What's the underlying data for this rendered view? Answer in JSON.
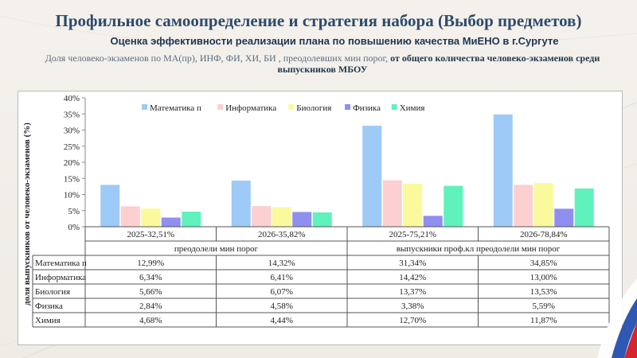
{
  "slide": {
    "title": "Профильное самоопределение и стратегия набора (Выбор предметов)",
    "subtitle": "Оценка эффективности реализации плана по повышению качества МиЕНО в г.Сургуте",
    "desc_normal": "Доля человеко-экзаменов по МА(пр), ИНФ, ФИ, ХИ, БИ , преодолевших мин порог,",
    "desc_bold": "от общего количества человеко-экзаменов среди выпускников МБОУ"
  },
  "chart_data": {
    "type": "bar",
    "ylabel": "доля выпускников от человеко-экзаменов (%)",
    "ylim": [
      0,
      40
    ],
    "yticks": [
      "0%",
      "5%",
      "10%",
      "15%",
      "20%",
      "25%",
      "30%",
      "35%",
      "40%"
    ],
    "grid": false,
    "legend_position": "top",
    "categories": [
      "2025-32,51%",
      "2026-35,82%",
      "2025-75,21%",
      "2026-78,84%"
    ],
    "groups": [
      {
        "label": "преодолели мин порог",
        "span": 2
      },
      {
        "label": "выпускники проф.кл преодолели мин порог",
        "span": 2
      }
    ],
    "series": [
      {
        "name": "Математика п",
        "color": "#9dcaf7",
        "values": [
          12.99,
          14.32,
          31.34,
          34.85
        ],
        "labels": [
          "12,99%",
          "14,32%",
          "31,34%",
          "34,85%"
        ]
      },
      {
        "name": "Информатика",
        "color": "#fcd0d0",
        "values": [
          6.34,
          6.41,
          14.42,
          13.0
        ],
        "labels": [
          "6,34%",
          "6,41%",
          "14,42%",
          "13,00%"
        ]
      },
      {
        "name": "Биология",
        "color": "#fafa9c",
        "values": [
          5.66,
          6.07,
          13.37,
          13.53
        ],
        "labels": [
          "5,66%",
          "6,07%",
          "13,37%",
          "13,53%"
        ]
      },
      {
        "name": "Физика",
        "color": "#8f8ff0",
        "values": [
          2.84,
          4.58,
          3.38,
          5.59
        ],
        "labels": [
          "2,84%",
          "4,58%",
          "3,38%",
          "5,59%"
        ]
      },
      {
        "name": "Химия",
        "color": "#5ff2bc",
        "values": [
          4.68,
          4.44,
          12.7,
          11.87
        ],
        "labels": [
          "4,68%",
          "4,44%",
          "12,70%",
          "11,87%"
        ]
      }
    ]
  }
}
